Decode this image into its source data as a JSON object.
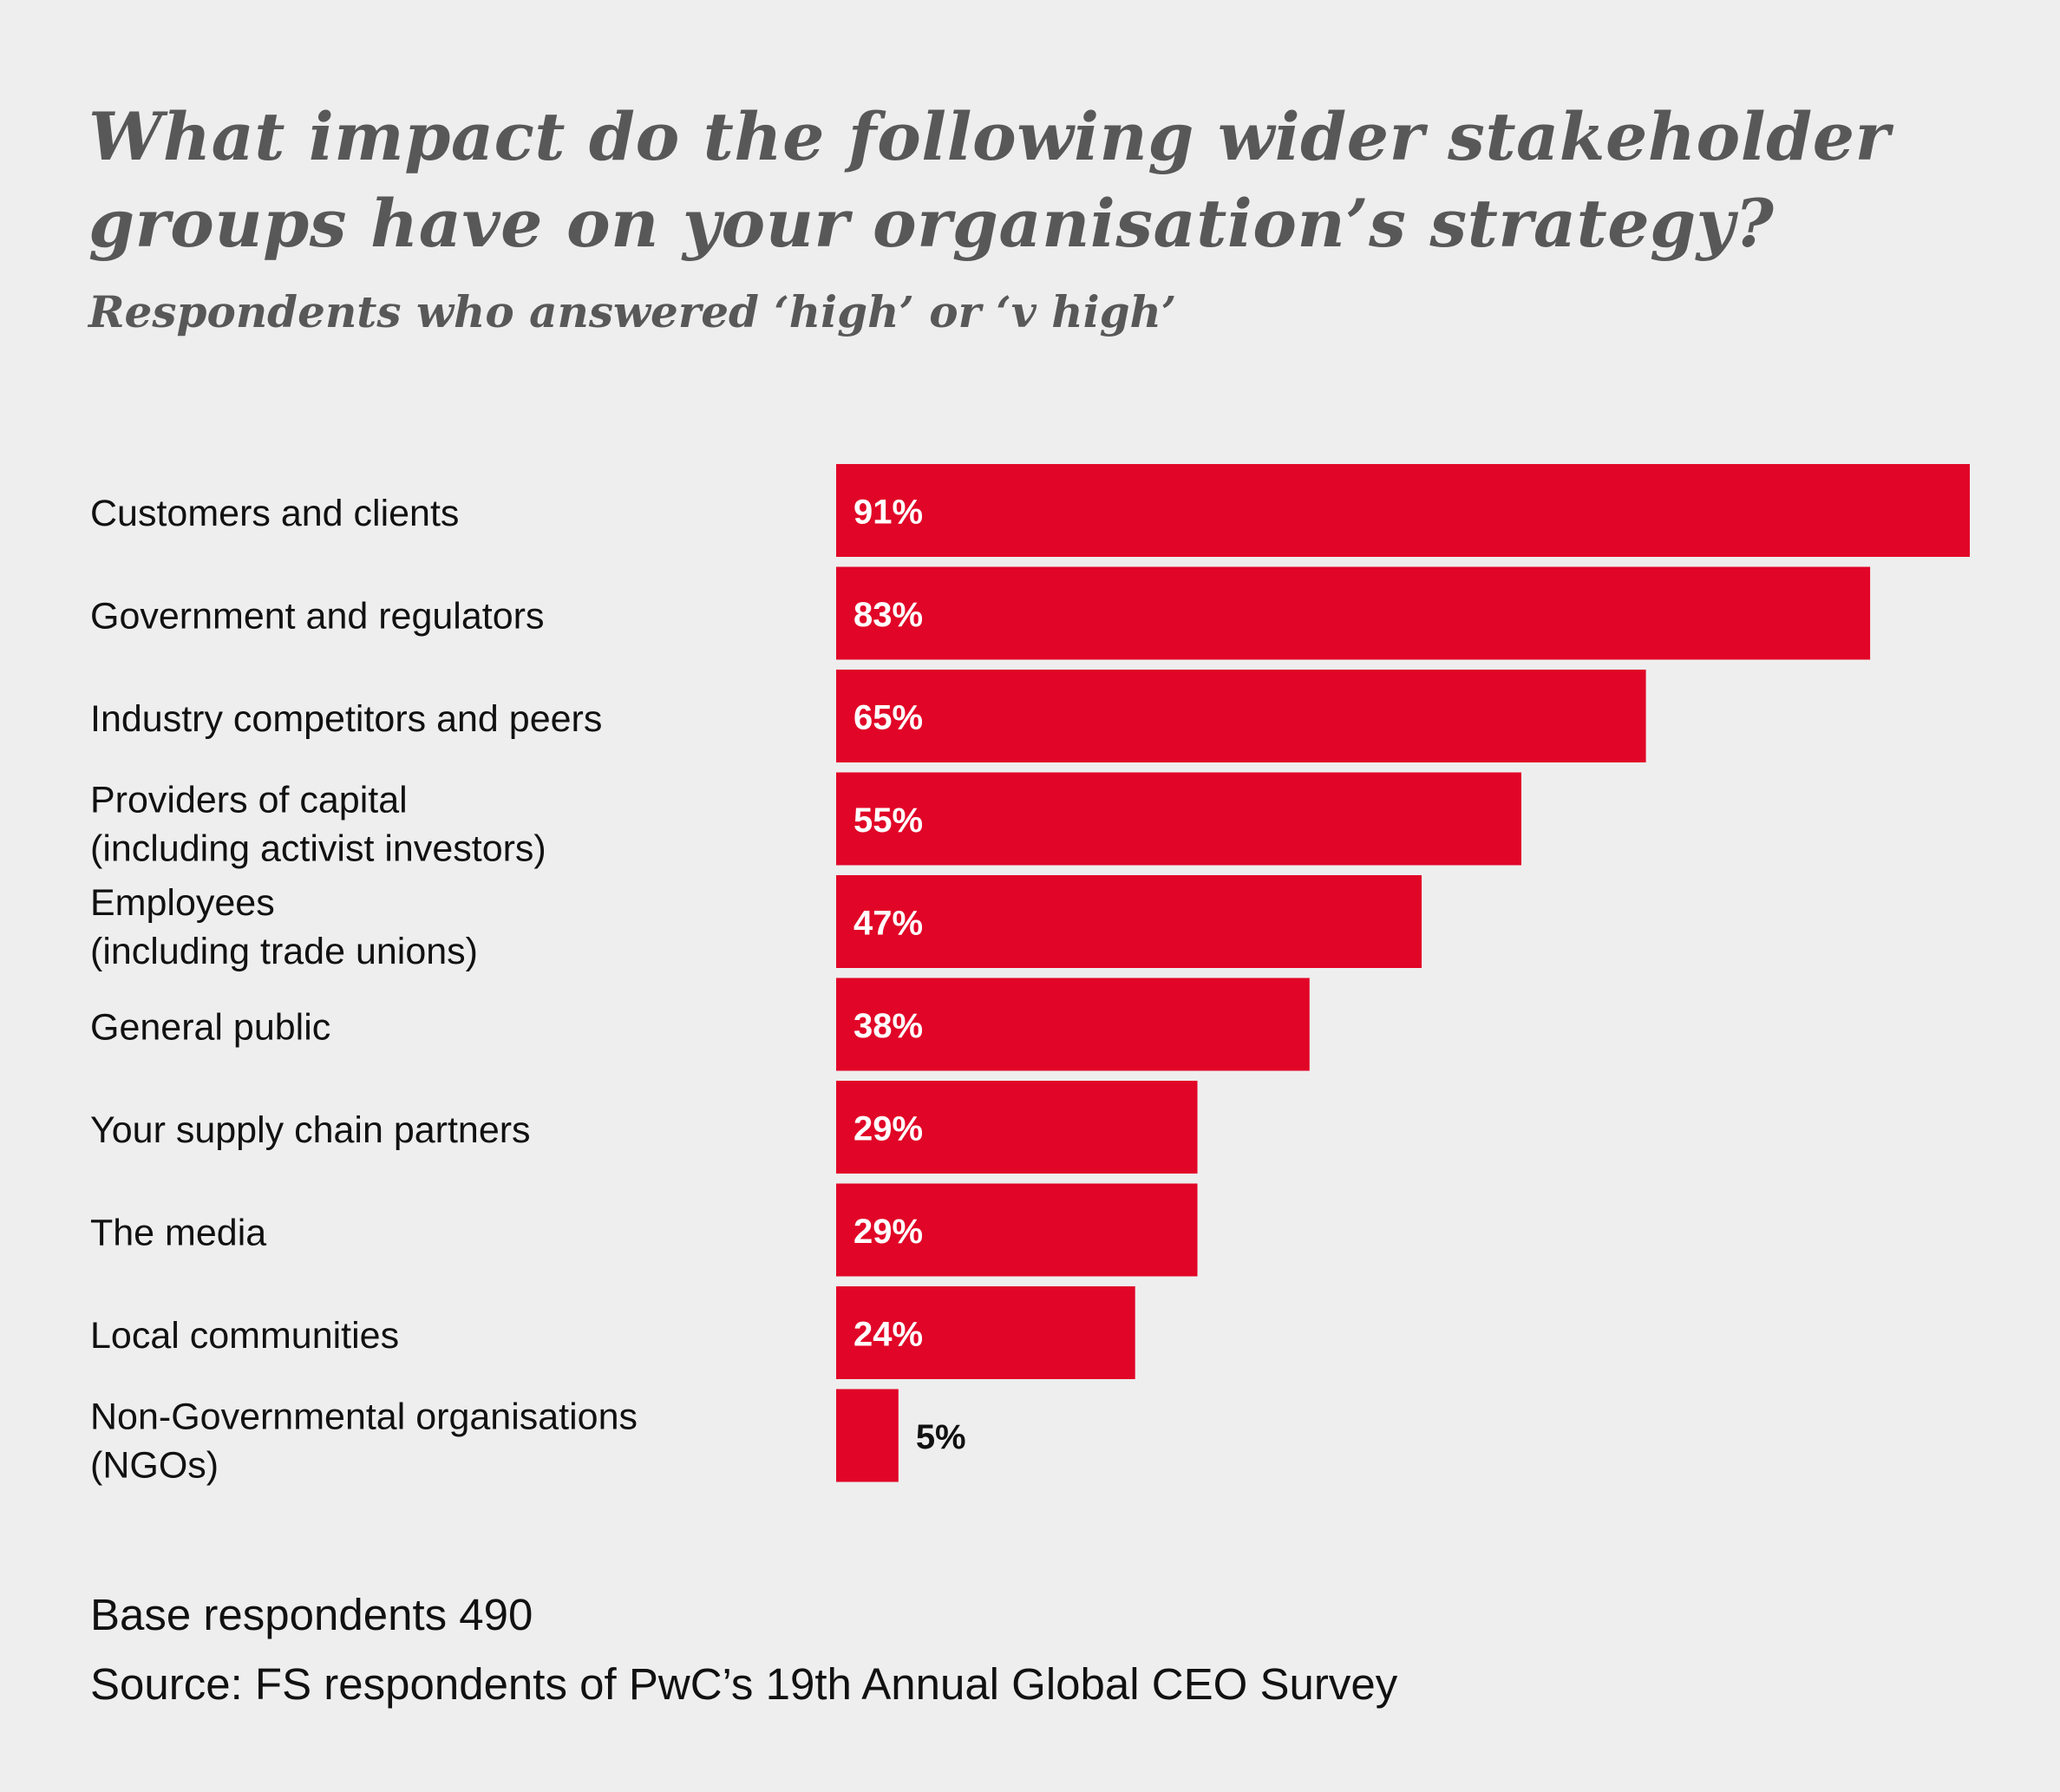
{
  "chart_data": {
    "type": "bar",
    "orientation": "horizontal",
    "title": "What impact do the following wider stakeholder groups have on your organisation’s strategy?",
    "subtitle": "Respondents who answered ‘high’ or ‘v high’",
    "xlabel": "",
    "ylabel": "",
    "xlim": [
      0,
      91
    ],
    "grid": false,
    "legend": "none",
    "unit": "%",
    "categories": [
      [
        "Customers and clients"
      ],
      [
        "Government and regulators"
      ],
      [
        "Industry competitors and peers"
      ],
      [
        "Providers of capital",
        "(including activist investors)"
      ],
      [
        "Employees",
        "(including trade unions)"
      ],
      [
        "General public"
      ],
      [
        "Your supply chain partners"
      ],
      [
        "The media"
      ],
      [
        "Local communities"
      ],
      [
        "Non-Governmental organisations",
        "(NGOs)"
      ]
    ],
    "values": [
      91,
      83,
      65,
      55,
      47,
      38,
      29,
      29,
      24,
      5
    ],
    "value_labels": [
      "91%",
      "83%",
      "65%",
      "55%",
      "47%",
      "38%",
      "29%",
      "29%",
      "24%",
      "5%"
    ],
    "bar_color": "#e10527",
    "label_inside_color": "#ffffff",
    "label_outside_color": "#111111"
  },
  "footer": {
    "base": "Base respondents 490",
    "source": "Source: FS respondents of PwC’s 19th Annual Global CEO Survey"
  }
}
